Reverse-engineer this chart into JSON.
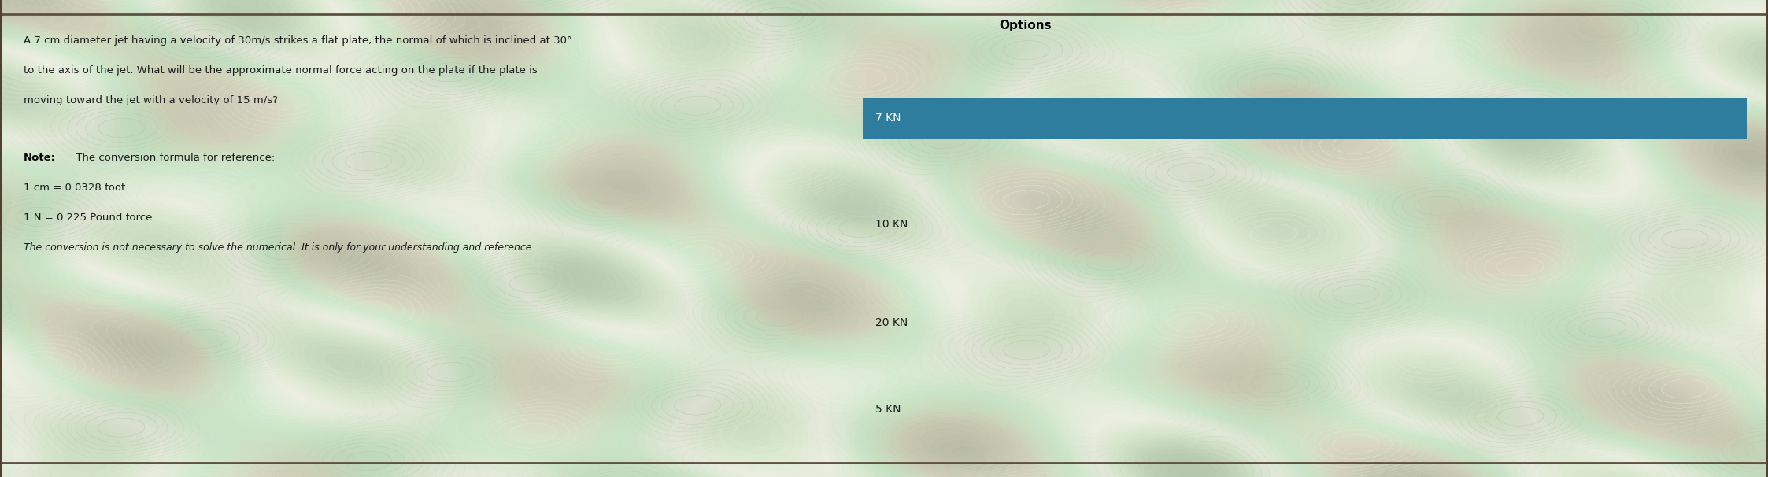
{
  "title": "Options",
  "question_lines": [
    "A 7 cm diameter jet having a velocity of 30m/s strikes a flat plate, the normal of which is inclined at 30°",
    "to the axis of the jet. What will be the approximate normal force acting on the plate if the plate is",
    "moving toward the jet with a velocity of 15 m/s?"
  ],
  "note_lines": [
    "Note: The conversion formula for reference:",
    "1 cm = 0.0328 foot",
    "1 N = 0.225 Pound force",
    "The conversion is not necessary to solve the numerical. It is only for your understanding and reference."
  ],
  "options": [
    {
      "label": "7 KN",
      "highlighted": true
    },
    {
      "label": "10 KN",
      "highlighted": false
    },
    {
      "label": "20 KN",
      "highlighted": false
    },
    {
      "label": "5 KN",
      "highlighted": false
    }
  ],
  "highlight_color": "#2e7d9e",
  "bg_color_left": "#d8cfc0",
  "bg_color_right": "#d8cfc0",
  "title_color": "#000000",
  "question_color": "#1a1a1a",
  "note_bold_color": "#000000",
  "note_italic_color": "#1a1a1a",
  "option_text_color": "#1a1a1a",
  "option_highlighted_text_color": "#ffffff",
  "title_fontsize": 11,
  "question_fontsize": 9.5,
  "note_fontsize": 9.5,
  "option_fontsize": 10,
  "fig_width": 22.46,
  "fig_height": 6.06,
  "dpi": 100
}
